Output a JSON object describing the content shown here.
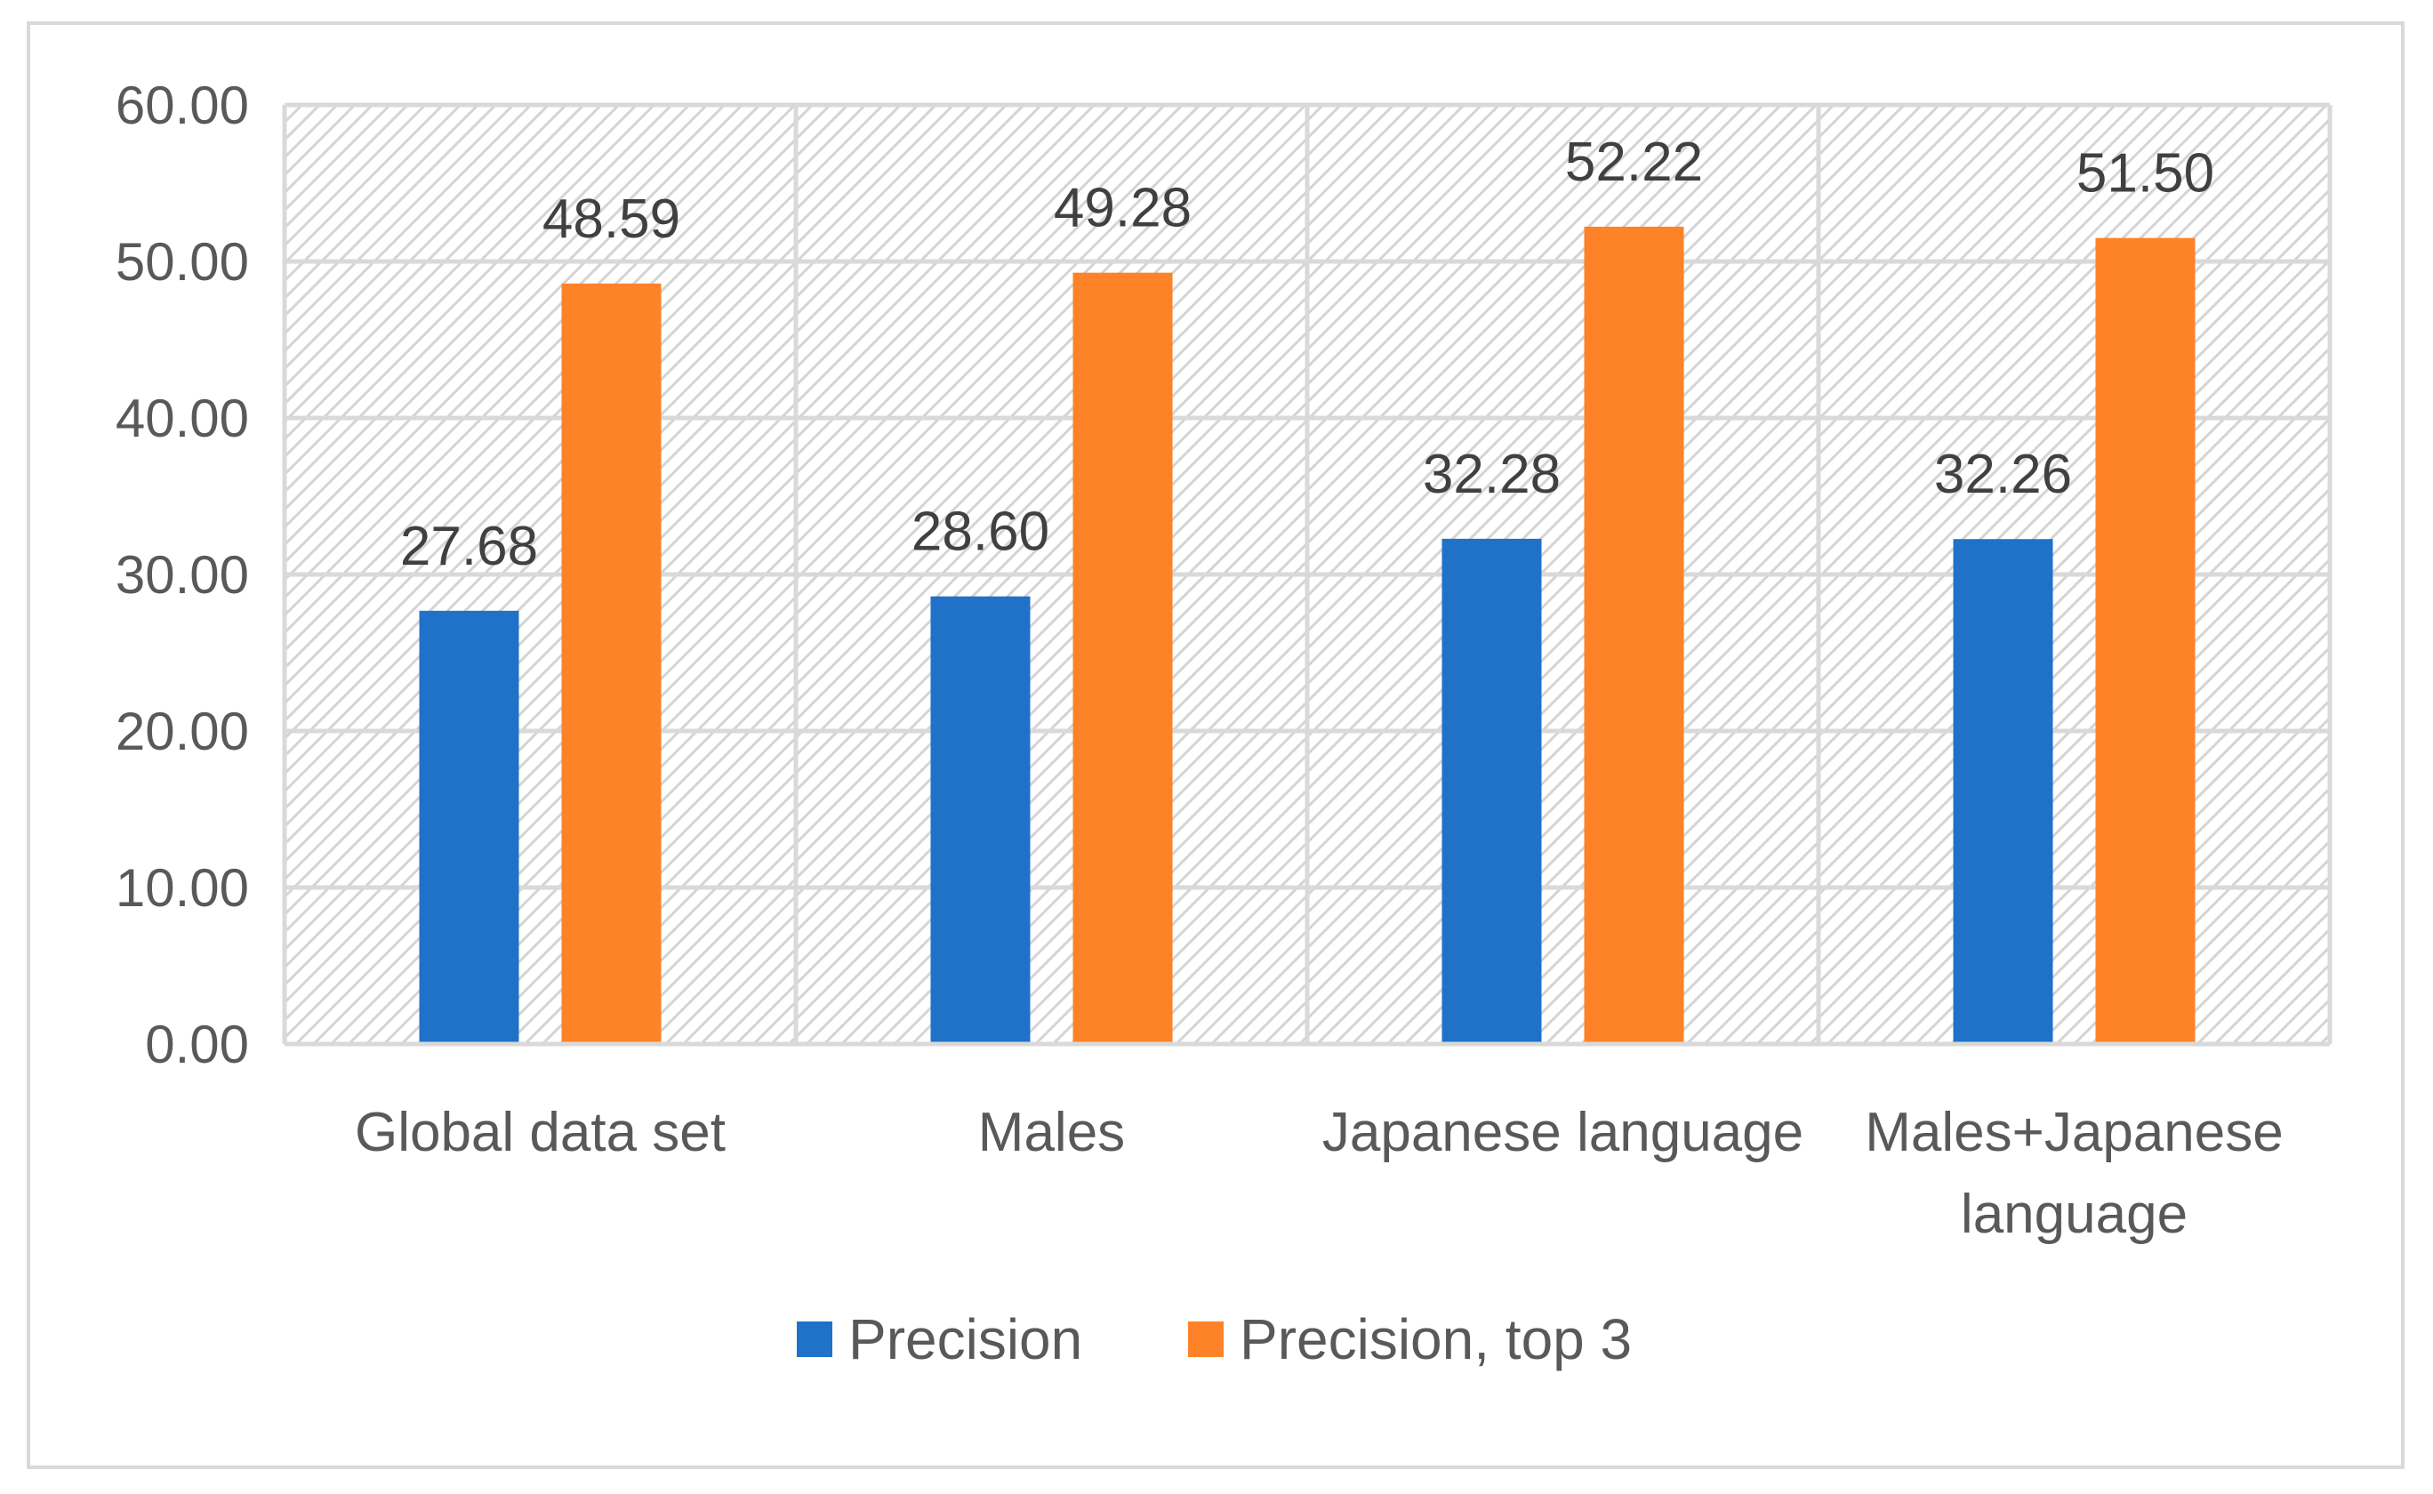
{
  "chart_data": {
    "type": "bar",
    "title": "",
    "xlabel": "",
    "ylabel": "",
    "ylim": [
      0,
      60
    ],
    "yticks": [
      "0.00",
      "10.00",
      "20.00",
      "30.00",
      "40.00",
      "50.00",
      "60.00"
    ],
    "categories": [
      [
        "Global data set"
      ],
      [
        "Males"
      ],
      [
        "Japanese language"
      ],
      [
        "Males+Japanese",
        "language"
      ]
    ],
    "series": [
      {
        "name": "Precision",
        "color": "#1f72c8",
        "values": [
          27.68,
          28.6,
          32.28,
          32.26
        ],
        "labels": [
          "27.68",
          "28.60",
          "32.28",
          "32.26"
        ]
      },
      {
        "name": "Precision, top 3",
        "color": "#fd8228",
        "values": [
          48.59,
          49.28,
          52.22,
          51.5
        ],
        "labels": [
          "48.59",
          "49.28",
          "52.22",
          "51.50"
        ]
      }
    ],
    "grid": true,
    "plot_background": "diagonal-hatch",
    "legend": "bottom"
  }
}
